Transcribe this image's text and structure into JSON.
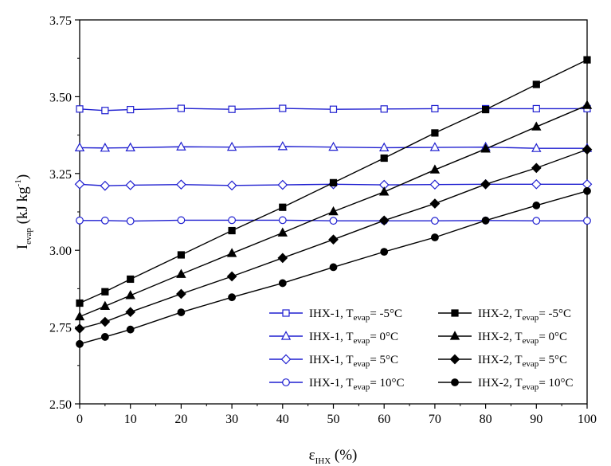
{
  "chart_data": {
    "type": "line",
    "xlabel": {
      "main": "ε",
      "sub": "IHX",
      "rest": " (%)"
    },
    "ylabel": {
      "main": "I",
      "sub": "evap",
      "rest": " (kJ kg",
      "sup": "-1",
      "end": ")"
    },
    "xlim": [
      0,
      100
    ],
    "ylim": [
      2.5,
      3.75
    ],
    "x_ticks": [
      0,
      10,
      20,
      30,
      40,
      50,
      60,
      70,
      80,
      90,
      100
    ],
    "y_ticks": [
      2.5,
      2.75,
      3.0,
      3.25,
      3.5,
      3.75
    ],
    "y_tick_labels": [
      "2.50",
      "2.75",
      "3.00",
      "3.25",
      "3.50",
      "3.75"
    ],
    "x": [
      0,
      5,
      10,
      20,
      30,
      40,
      50,
      60,
      70,
      80,
      90,
      100
    ],
    "series": [
      {
        "name": "IHX-1, T_evap= -5°C",
        "label": {
          "pre": "IHX-1, T",
          "sub": "evap",
          "post": "= -5°C"
        },
        "color": "#1f1fd0",
        "marker": "square",
        "filled": false,
        "values": [
          3.46,
          3.455,
          3.458,
          3.462,
          3.459,
          3.462,
          3.459,
          3.46,
          3.461,
          3.461,
          3.461,
          3.461
        ]
      },
      {
        "name": "IHX-1, T_evap= 0°C",
        "label": {
          "pre": "IHX-1, T",
          "sub": "evap",
          "post": "= 0°C"
        },
        "color": "#1f1fd0",
        "marker": "triangle",
        "filled": false,
        "values": [
          3.334,
          3.333,
          3.334,
          3.337,
          3.336,
          3.338,
          3.336,
          3.334,
          3.335,
          3.336,
          3.332,
          3.332
        ]
      },
      {
        "name": "IHX-1, T_evap= 5°C",
        "label": {
          "pre": "IHX-1, T",
          "sub": "evap",
          "post": "= 5°C"
        },
        "color": "#1f1fd0",
        "marker": "diamond",
        "filled": false,
        "values": [
          3.215,
          3.21,
          3.212,
          3.214,
          3.211,
          3.213,
          3.215,
          3.213,
          3.214,
          3.215,
          3.215,
          3.215
        ]
      },
      {
        "name": "IHX-1, T_evap= 10°C",
        "label": {
          "pre": "IHX-1, T",
          "sub": "evap",
          "post": "= 10°C"
        },
        "color": "#1f1fd0",
        "marker": "circle",
        "filled": false,
        "values": [
          3.097,
          3.097,
          3.095,
          3.098,
          3.098,
          3.098,
          3.096,
          3.096,
          3.096,
          3.097,
          3.096,
          3.096
        ]
      },
      {
        "name": "IHX-2, T_evap= -5°C",
        "label": {
          "pre": "IHX-2, T",
          "sub": "evap",
          "post": "= -5°C"
        },
        "color": "#000000",
        "marker": "square",
        "filled": true,
        "values": [
          2.828,
          2.865,
          2.906,
          2.985,
          3.064,
          3.14,
          3.22,
          3.3,
          3.382,
          3.458,
          3.54,
          3.62
        ]
      },
      {
        "name": "IHX-2, T_evap= 0°C",
        "label": {
          "pre": "IHX-2, T",
          "sub": "evap",
          "post": "= 0°C"
        },
        "color": "#000000",
        "marker": "triangle",
        "filled": true,
        "values": [
          2.784,
          2.818,
          2.853,
          2.922,
          2.99,
          3.057,
          3.126,
          3.19,
          3.262,
          3.33,
          3.402,
          3.472
        ]
      },
      {
        "name": "IHX-2, T_evap= 5°C",
        "label": {
          "pre": "IHX-2, T",
          "sub": "evap",
          "post": "= 5°C"
        },
        "color": "#000000",
        "marker": "diamond",
        "filled": true,
        "values": [
          2.745,
          2.767,
          2.799,
          2.858,
          2.915,
          2.975,
          3.035,
          3.097,
          3.152,
          3.215,
          3.268,
          3.328
        ]
      },
      {
        "name": "IHX-2, T_evap= 10°C",
        "label": {
          "pre": "IHX-2, T",
          "sub": "evap",
          "post": "= 10°C"
        },
        "color": "#000000",
        "marker": "circle",
        "filled": true,
        "values": [
          2.695,
          2.718,
          2.742,
          2.798,
          2.847,
          2.893,
          2.945,
          2.995,
          3.042,
          3.097,
          3.146,
          3.193
        ]
      }
    ],
    "legend": "bottom-right",
    "grid": false
  }
}
